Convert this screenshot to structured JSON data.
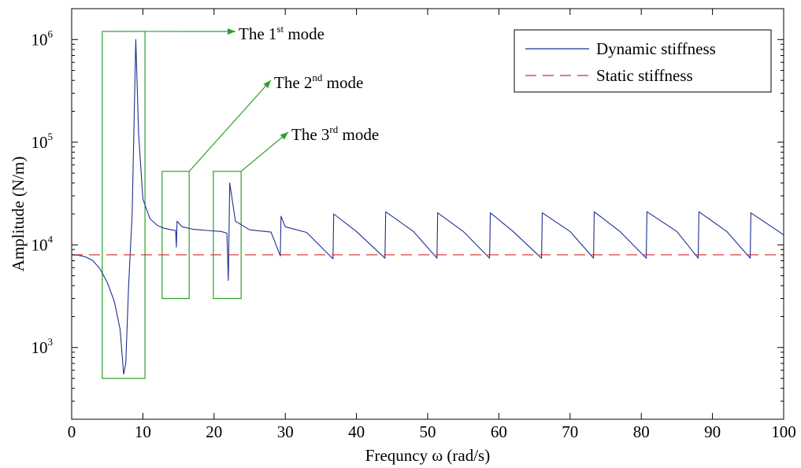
{
  "chart_data": {
    "type": "line",
    "xlabel": "Frequncy ω (rad/s)",
    "ylabel": "Amplitude (N/m)",
    "xlim": [
      0,
      100
    ],
    "ylim": [
      200,
      2000000
    ],
    "yscale": "log",
    "grid": false,
    "legend_position": "top-right",
    "x_ticks": [
      0,
      10,
      20,
      30,
      40,
      50,
      60,
      70,
      80,
      90,
      100
    ],
    "y_ticks": [
      {
        "value": 1000,
        "base": "10",
        "exp": "3"
      },
      {
        "value": 10000,
        "base": "10",
        "exp": "4"
      },
      {
        "value": 100000,
        "base": "10",
        "exp": "5"
      },
      {
        "value": 1000000,
        "base": "10",
        "exp": "6"
      }
    ],
    "series": [
      {
        "name": "Dynamic stiffness",
        "color": "#1f2f8f",
        "style": "solid",
        "base_value": 8000,
        "spike_frequencies": [
          7.3,
          14.7,
          22.0,
          29.3,
          36.7,
          44.0,
          51.3,
          58.7,
          66.0,
          73.3,
          80.7,
          88.0,
          95.3
        ],
        "spike_peaks": [
          1000000,
          17000,
          40000,
          19000,
          20000,
          21000,
          20500,
          20500,
          20500,
          21000,
          21000,
          21000,
          20500
        ],
        "spike_troughs": [
          550,
          9500,
          4500,
          7800,
          7300,
          7400,
          7400,
          7400,
          7400,
          7400,
          7400,
          7400,
          7400
        ],
        "points": [
          [
            0,
            8000
          ],
          [
            1,
            7900
          ],
          [
            2,
            7600
          ],
          [
            3,
            7000
          ],
          [
            4,
            5800
          ],
          [
            5,
            4300
          ],
          [
            6,
            2800
          ],
          [
            6.8,
            1500
          ],
          [
            7.3,
            550
          ],
          [
            7.6,
            700
          ],
          [
            8.0,
            4000
          ],
          [
            8.5,
            20000
          ],
          [
            9.0,
            1000000
          ],
          [
            9.4,
            120000
          ],
          [
            10,
            28000
          ],
          [
            11,
            18000
          ],
          [
            12,
            15500
          ],
          [
            13,
            14500
          ],
          [
            14,
            14000
          ],
          [
            14.6,
            13800
          ],
          [
            14.7,
            9500
          ],
          [
            14.8,
            17000
          ],
          [
            15.5,
            15000
          ],
          [
            17,
            14200
          ],
          [
            19,
            13800
          ],
          [
            21,
            13500
          ],
          [
            21.8,
            13000
          ],
          [
            22.0,
            4500
          ],
          [
            22.2,
            40000
          ],
          [
            23,
            17000
          ],
          [
            25,
            14000
          ],
          [
            28,
            13300
          ],
          [
            29.3,
            7800
          ],
          [
            29.4,
            19000
          ],
          [
            30,
            15000
          ],
          [
            33,
            13200
          ],
          [
            36.7,
            7300
          ],
          [
            36.8,
            20000
          ],
          [
            40,
            13500
          ],
          [
            44.0,
            7400
          ],
          [
            44.1,
            21000
          ],
          [
            48,
            13500
          ],
          [
            51.3,
            7400
          ],
          [
            51.4,
            20500
          ],
          [
            55,
            13500
          ],
          [
            58.7,
            7400
          ],
          [
            58.8,
            20500
          ],
          [
            62,
            13500
          ],
          [
            66.0,
            7400
          ],
          [
            66.1,
            20500
          ],
          [
            70,
            13500
          ],
          [
            73.3,
            7400
          ],
          [
            73.4,
            21000
          ],
          [
            77,
            13500
          ],
          [
            80.7,
            7400
          ],
          [
            80.8,
            21000
          ],
          [
            85,
            13500
          ],
          [
            88.0,
            7400
          ],
          [
            88.1,
            21000
          ],
          [
            92,
            13500
          ],
          [
            95.3,
            7400
          ],
          [
            95.4,
            20500
          ],
          [
            100,
            12500
          ]
        ]
      },
      {
        "name": "Static stiffness",
        "color": "#d62728",
        "style": "dashed",
        "points": [
          [
            0,
            8000
          ],
          [
            100,
            8000
          ]
        ]
      }
    ],
    "annotations": [
      {
        "pre": "The 1",
        "sup": "st",
        "post": " mode",
        "box": {
          "x0": 4.3,
          "x1": 10.3,
          "y0": 500,
          "y1": 1200000
        }
      },
      {
        "pre": "The 2",
        "sup": "nd",
        "post": " mode",
        "box": {
          "x0": 12.7,
          "x1": 16.5,
          "y0": 3000,
          "y1": 52000
        }
      },
      {
        "pre": "The 3",
        "sup": "rd",
        "post": " mode",
        "box": {
          "x0": 19.9,
          "x1": 23.8,
          "y0": 3000,
          "y1": 52000
        }
      }
    ],
    "annotation_color": "#2ca02c"
  }
}
